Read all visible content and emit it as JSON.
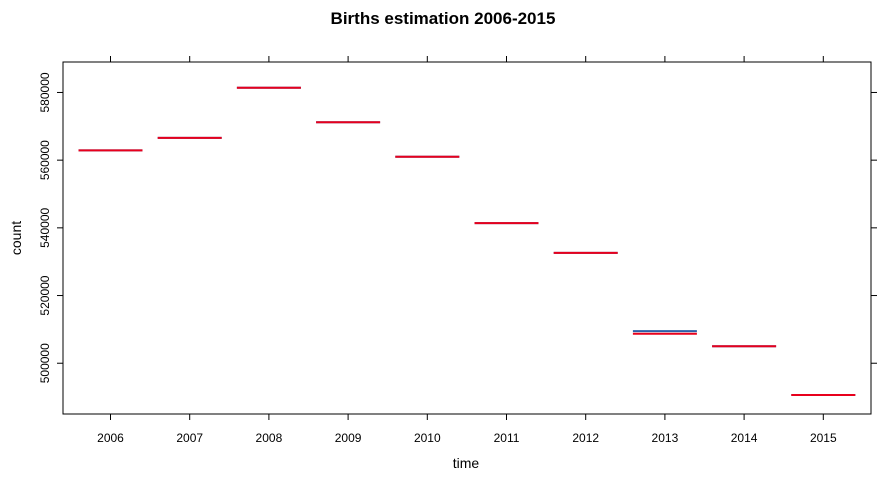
{
  "chart_data": {
    "type": "line",
    "title": "Births estimation 2006-2015",
    "xlabel": "time",
    "ylabel": "count",
    "categories": [
      "2006",
      "2007",
      "2008",
      "2009",
      "2010",
      "2011",
      "2012",
      "2013",
      "2014",
      "2015"
    ],
    "series": [
      {
        "color": "#2c5fa8",
        "values": [
          562900,
          566600,
          581400,
          571200,
          561000,
          541400,
          532600,
          509500,
          505000,
          490600
        ]
      },
      {
        "color": "#e8001c",
        "values": [
          562900,
          566600,
          581400,
          571200,
          561000,
          541400,
          532600,
          508700,
          505000,
          490600
        ]
      }
    ],
    "y_ticks": [
      500000,
      520000,
      540000,
      560000,
      580000
    ],
    "y_tick_labels": [
      "500000",
      "520000",
      "540000",
      "560000",
      "580000"
    ],
    "ylim": [
      485000,
      589000
    ],
    "grid": false
  }
}
